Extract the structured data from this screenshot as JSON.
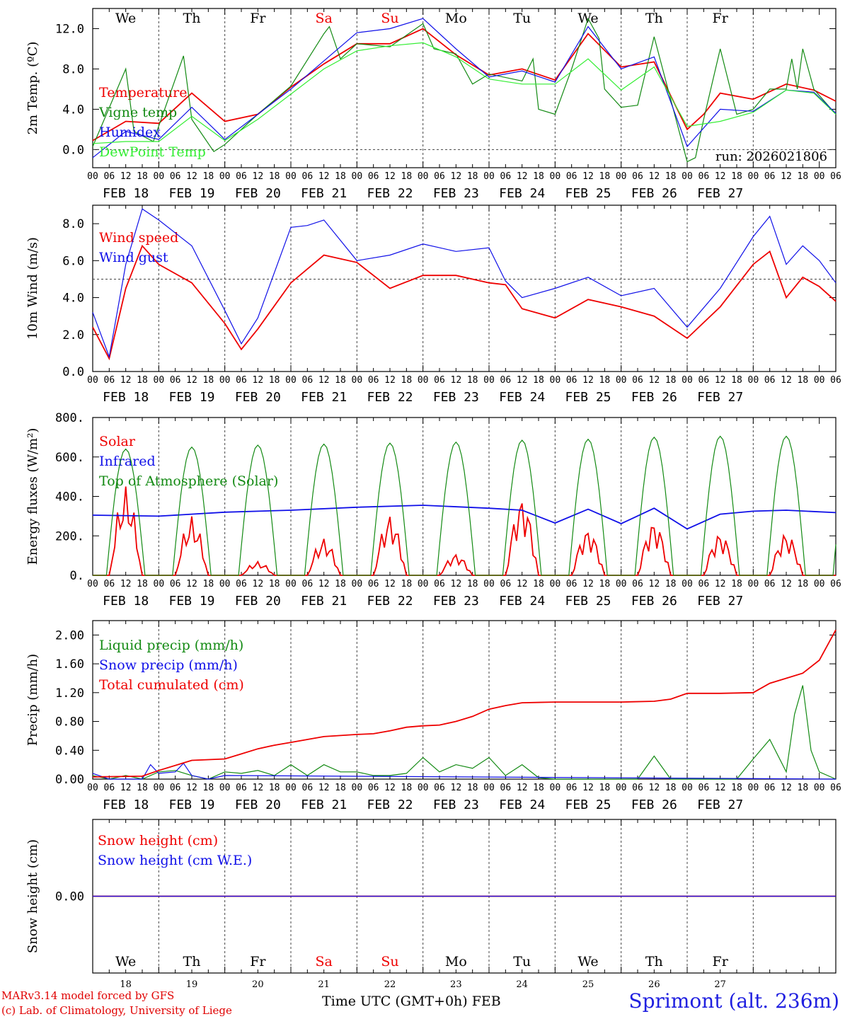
{
  "footer": {
    "model_credit": "MARv3.14 model forced by GFS",
    "lab_credit": "(c) Lab. of Climatology, University of Liege",
    "time_axis": "Time UTC (GMT+0h)",
    "month": "FEB",
    "station": "Sprimont (alt. 236m)"
  },
  "colors": {
    "red": "#ee0000",
    "green": "#138a13",
    "blue": "#1010e8",
    "lightgreen": "#33ee33",
    "black": "#000000"
  },
  "chart_data": {
    "type": "line",
    "days": [
      {
        "weekday": "We",
        "date": "FEB 18",
        "day": "18",
        "weekend": false
      },
      {
        "weekday": "Th",
        "date": "FEB 19",
        "day": "19",
        "weekend": false
      },
      {
        "weekday": "Fr",
        "date": "FEB 20",
        "day": "20",
        "weekend": false
      },
      {
        "weekday": "Sa",
        "date": "FEB 21",
        "day": "21",
        "weekend": true
      },
      {
        "weekday": "Su",
        "date": "FEB 22",
        "day": "22",
        "weekend": true
      },
      {
        "weekday": "Mo",
        "date": "FEB 23",
        "day": "23",
        "weekend": false
      },
      {
        "weekday": "Tu",
        "date": "FEB 24",
        "day": "24",
        "weekend": false
      },
      {
        "weekday": "We",
        "date": "FEB 25",
        "day": "25",
        "weekend": false
      },
      {
        "weekday": "Th",
        "date": "FEB 26",
        "day": "26",
        "weekend": false
      },
      {
        "weekday": "Fr",
        "date": "FEB 27",
        "day": "27",
        "weekend": false
      }
    ],
    "hour_labels": [
      "00",
      "06",
      "12",
      "18"
    ],
    "panels": [
      {
        "id": "temperature",
        "ylabel": "2m Temp. (ºC)",
        "ylim": [
          -1.8,
          14.0
        ],
        "yticks": [
          "0.0",
          "4.0",
          "8.0",
          "12.0"
        ],
        "ytick_values": [
          0,
          4,
          8,
          12
        ],
        "dashed_ref": 0,
        "show_weekdays": true,
        "annotation": "run: 2026021806",
        "series": [
          {
            "name": "Temperature",
            "color": "red",
            "x": [
              0,
              12,
              24,
              36,
              48,
              60,
              72,
              84,
              96,
              108,
              120,
              132,
              144,
              156,
              168,
              180,
              192,
              204,
              216,
              222,
              228,
              240,
              252,
              262,
              270
            ],
            "values": [
              0.9,
              2.8,
              2.6,
              5.6,
              2.8,
              3.5,
              6.2,
              8.5,
              10.5,
              10.5,
              12.0,
              9.4,
              7.4,
              8.0,
              6.9,
              11.5,
              8.2,
              8.7,
              2.0,
              3.5,
              5.6,
              5.0,
              6.5,
              5.9,
              4.8
            ]
          },
          {
            "name": "Vigne temp",
            "color": "green",
            "x": [
              0,
              12,
              15,
              22,
              33,
              36,
              44,
              48,
              60,
              72,
              84,
              86,
              90,
              96,
              108,
              120,
              124,
              132,
              138,
              144,
              156,
              160,
              162,
              168,
              174,
              180,
              184,
              186,
              192,
              198,
              204,
              216,
              219,
              222,
              228,
              234,
              240,
              246,
              252,
              254,
              256,
              258,
              262,
              270
            ],
            "values": [
              0.3,
              8.0,
              1.8,
              0.8,
              9.3,
              3.0,
              -0.2,
              0.5,
              3.5,
              6.3,
              11.5,
              12.2,
              9.0,
              10.5,
              10.2,
              12.5,
              10.0,
              9.5,
              6.5,
              7.5,
              6.8,
              9.0,
              4.0,
              3.5,
              8.0,
              13.0,
              11.0,
              6.0,
              4.2,
              4.4,
              11.2,
              -1.2,
              -0.8,
              3.0,
              10.0,
              3.5,
              4.0,
              6.0,
              6.0,
              9.0,
              6.0,
              10.0,
              6.0,
              3.5
            ]
          },
          {
            "name": "Humidex",
            "color": "blue",
            "x": [
              0,
              12,
              24,
              36,
              48,
              60,
              72,
              84,
              96,
              108,
              120,
              132,
              144,
              156,
              168,
              180,
              192,
              204,
              216,
              228,
              240,
              252,
              262,
              270
            ],
            "values": [
              -0.8,
              1.8,
              1.0,
              4.2,
              1.0,
              3.5,
              6.0,
              8.8,
              11.6,
              12.0,
              13.0,
              10.0,
              7.2,
              7.8,
              6.7,
              12.2,
              8.0,
              9.2,
              0.3,
              4.0,
              3.8,
              5.9,
              5.7,
              3.6
            ]
          },
          {
            "name": "DewPoint Temp",
            "color": "lightgreen",
            "x": [
              0,
              12,
              24,
              36,
              48,
              60,
              72,
              84,
              96,
              108,
              120,
              132,
              144,
              156,
              168,
              180,
              192,
              204,
              216,
              228,
              240,
              252,
              262,
              270
            ],
            "values": [
              0.6,
              0.8,
              0.8,
              3.3,
              0.9,
              3.0,
              5.5,
              8.0,
              9.8,
              10.3,
              10.6,
              9.2,
              7.0,
              6.5,
              6.5,
              9.0,
              5.9,
              8.2,
              2.3,
              2.8,
              3.7,
              5.9,
              5.6,
              3.5
            ]
          }
        ]
      },
      {
        "id": "wind",
        "ylabel": "10m Wind (m/s)",
        "ylim": [
          0,
          9.0
        ],
        "yticks": [
          "0.0",
          "2.0",
          "4.0",
          "6.0",
          "8.0"
        ],
        "ytick_values": [
          0,
          2,
          4,
          6,
          8
        ],
        "dashed_ref": 5,
        "series": [
          {
            "name": "Wind speed",
            "color": "red",
            "x": [
              0,
              6,
              12,
              18,
              24,
              36,
              48,
              54,
              60,
              72,
              84,
              96,
              108,
              120,
              132,
              144,
              150,
              156,
              168,
              180,
              192,
              204,
              216,
              228,
              240,
              246,
              252,
              258,
              264,
              270
            ],
            "values": [
              2.4,
              0.7,
              4.5,
              6.8,
              5.8,
              4.8,
              2.6,
              1.2,
              2.3,
              4.8,
              6.3,
              5.9,
              4.5,
              5.2,
              5.2,
              4.8,
              4.7,
              3.4,
              2.9,
              3.9,
              3.5,
              3.0,
              1.8,
              3.5,
              5.8,
              6.5,
              4.0,
              5.1,
              4.6,
              3.8
            ]
          },
          {
            "name": "Wind gust",
            "color": "blue",
            "x": [
              0,
              6,
              12,
              18,
              24,
              36,
              48,
              54,
              60,
              72,
              78,
              84,
              96,
              108,
              120,
              132,
              144,
              150,
              156,
              168,
              180,
              192,
              204,
              216,
              228,
              240,
              246,
              252,
              258,
              264,
              270
            ],
            "values": [
              3.2,
              0.8,
              5.8,
              8.8,
              8.2,
              6.8,
              3.3,
              1.5,
              2.9,
              7.8,
              7.9,
              8.2,
              6.0,
              6.3,
              6.9,
              6.5,
              6.7,
              4.9,
              4.0,
              4.5,
              5.1,
              4.1,
              4.5,
              2.4,
              4.5,
              7.3,
              8.4,
              5.8,
              6.8,
              6.0,
              4.8
            ]
          }
        ]
      },
      {
        "id": "energy",
        "ylabel": "Energy fluxes (W/m²)",
        "ylim": [
          0,
          800
        ],
        "yticks": [
          "0.",
          "200.",
          "400.",
          "600.",
          "800."
        ],
        "ytick_values": [
          0,
          200,
          400,
          600,
          800
        ],
        "series": [
          {
            "name": "Solar",
            "color": "red",
            "daily_peaks": [
              450,
              300,
              70,
              190,
              310,
              110,
              400,
              240,
              280,
              220
            ]
          },
          {
            "name": "Infrared",
            "color": "blue",
            "x": [
              0,
              24,
              48,
              72,
              96,
              120,
              144,
              156,
              168,
              180,
              192,
              204,
              216,
              228,
              240,
              252,
              270
            ],
            "values": [
              305,
              300,
              320,
              330,
              345,
              355,
              340,
              330,
              265,
              335,
              262,
              340,
              235,
              310,
              325,
              330,
              318
            ]
          },
          {
            "name": "Top of Atmosphere (Solar)",
            "color": "green",
            "daily_peaks": [
              640,
              650,
              660,
              665,
              670,
              675,
              685,
              690,
              700,
              705
            ]
          }
        ]
      },
      {
        "id": "precip",
        "ylabel": "Precip (mm/h)",
        "ylim": [
          0,
          2.2
        ],
        "yticks": [
          "0.00",
          "0.40",
          "0.80",
          "1.20",
          "1.60",
          "2.00"
        ],
        "ytick_values": [
          0,
          0.4,
          0.8,
          1.2,
          1.6,
          2.0
        ],
        "series": [
          {
            "name": "Liquid precip (mm/h)",
            "color": "green",
            "x": [
              0,
              6,
              12,
              18,
              24,
              30,
              36,
              42,
              48,
              54,
              60,
              66,
              72,
              78,
              84,
              90,
              96,
              102,
              108,
              114,
              120,
              126,
              132,
              138,
              144,
              150,
              156,
              162,
              168,
              174,
              180,
              186,
              192,
              198,
              204,
              210,
              216,
              222,
              228,
              234,
              240,
              246,
              252,
              255,
              258,
              261,
              264,
              270
            ],
            "values": [
              0.05,
              0,
              0.05,
              0,
              0.1,
              0.12,
              0.05,
              0,
              0.1,
              0.08,
              0.12,
              0.05,
              0.2,
              0.05,
              0.2,
              0.1,
              0.1,
              0.05,
              0.05,
              0.08,
              0.3,
              0.1,
              0.2,
              0.15,
              0.3,
              0.05,
              0.2,
              0.02,
              0,
              0,
              0,
              0,
              0,
              0,
              0.32,
              0,
              0,
              0,
              0,
              0,
              0.28,
              0.55,
              0.1,
              0.9,
              1.3,
              0.4,
              0.1,
              0
            ]
          },
          {
            "name": "Snow precip (mm/h)",
            "color": "blue",
            "x": [
              0,
              6,
              12,
              18,
              21,
              24,
              30,
              33,
              36,
              42,
              48,
              270
            ],
            "values": [
              0.08,
              0,
              0,
              0,
              0.2,
              0.08,
              0.1,
              0.22,
              0.05,
              0,
              0.05,
              0
            ]
          },
          {
            "name": "Total cumulated (cm)",
            "color": "red",
            "x": [
              0,
              18,
              24,
              36,
              48,
              54,
              60,
              66,
              72,
              78,
              84,
              96,
              102,
              108,
              114,
              120,
              126,
              132,
              138,
              144,
              150,
              156,
              168,
              180,
              192,
              204,
              210,
              216,
              228,
              240,
              246,
              252,
              258,
              264,
              270
            ],
            "values": [
              0.03,
              0.04,
              0.12,
              0.26,
              0.28,
              0.35,
              0.42,
              0.47,
              0.51,
              0.55,
              0.59,
              0.62,
              0.63,
              0.67,
              0.72,
              0.74,
              0.75,
              0.8,
              0.87,
              0.97,
              1.02,
              1.06,
              1.07,
              1.07,
              1.07,
              1.08,
              1.11,
              1.19,
              1.19,
              1.2,
              1.33,
              1.4,
              1.47,
              1.65,
              2.07
            ]
          }
        ]
      },
      {
        "id": "snow",
        "ylabel": "Snow height (cm)",
        "ylim": [
          -1,
          1
        ],
        "yticks": [
          "0.00"
        ],
        "ytick_values": [
          0
        ],
        "series": [
          {
            "name": "Snow height (cm)",
            "color": "red",
            "x": [
              0,
              270
            ],
            "values": [
              0,
              0
            ]
          },
          {
            "name": "Snow height (cm W.E.)",
            "color": "blue",
            "x": [
              0,
              270
            ],
            "values": [
              0,
              0
            ]
          }
        ]
      }
    ]
  }
}
